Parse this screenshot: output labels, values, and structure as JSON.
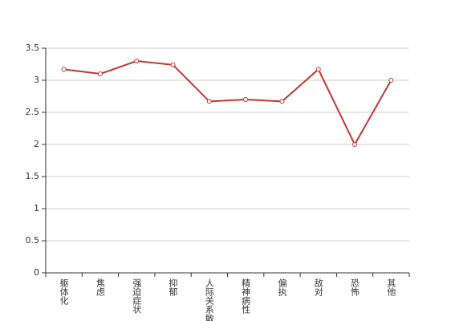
{
  "chart_data": {
    "type": "line",
    "categories": [
      "躯体化",
      "焦虑",
      "强迫症状",
      "抑郁",
      "人际关系敏感",
      "精神病性",
      "偏执",
      "敌对",
      "恐怖",
      "其他"
    ],
    "values": [
      3.17,
      3.1,
      3.3,
      3.24,
      2.67,
      2.7,
      2.67,
      3.17,
      2.0,
      3.0
    ],
    "color": "#c23531",
    "ylim": [
      0,
      3.5
    ],
    "yticks": [
      0,
      0.5,
      1,
      1.5,
      2,
      2.5,
      3,
      3.5
    ],
    "grid": true
  }
}
